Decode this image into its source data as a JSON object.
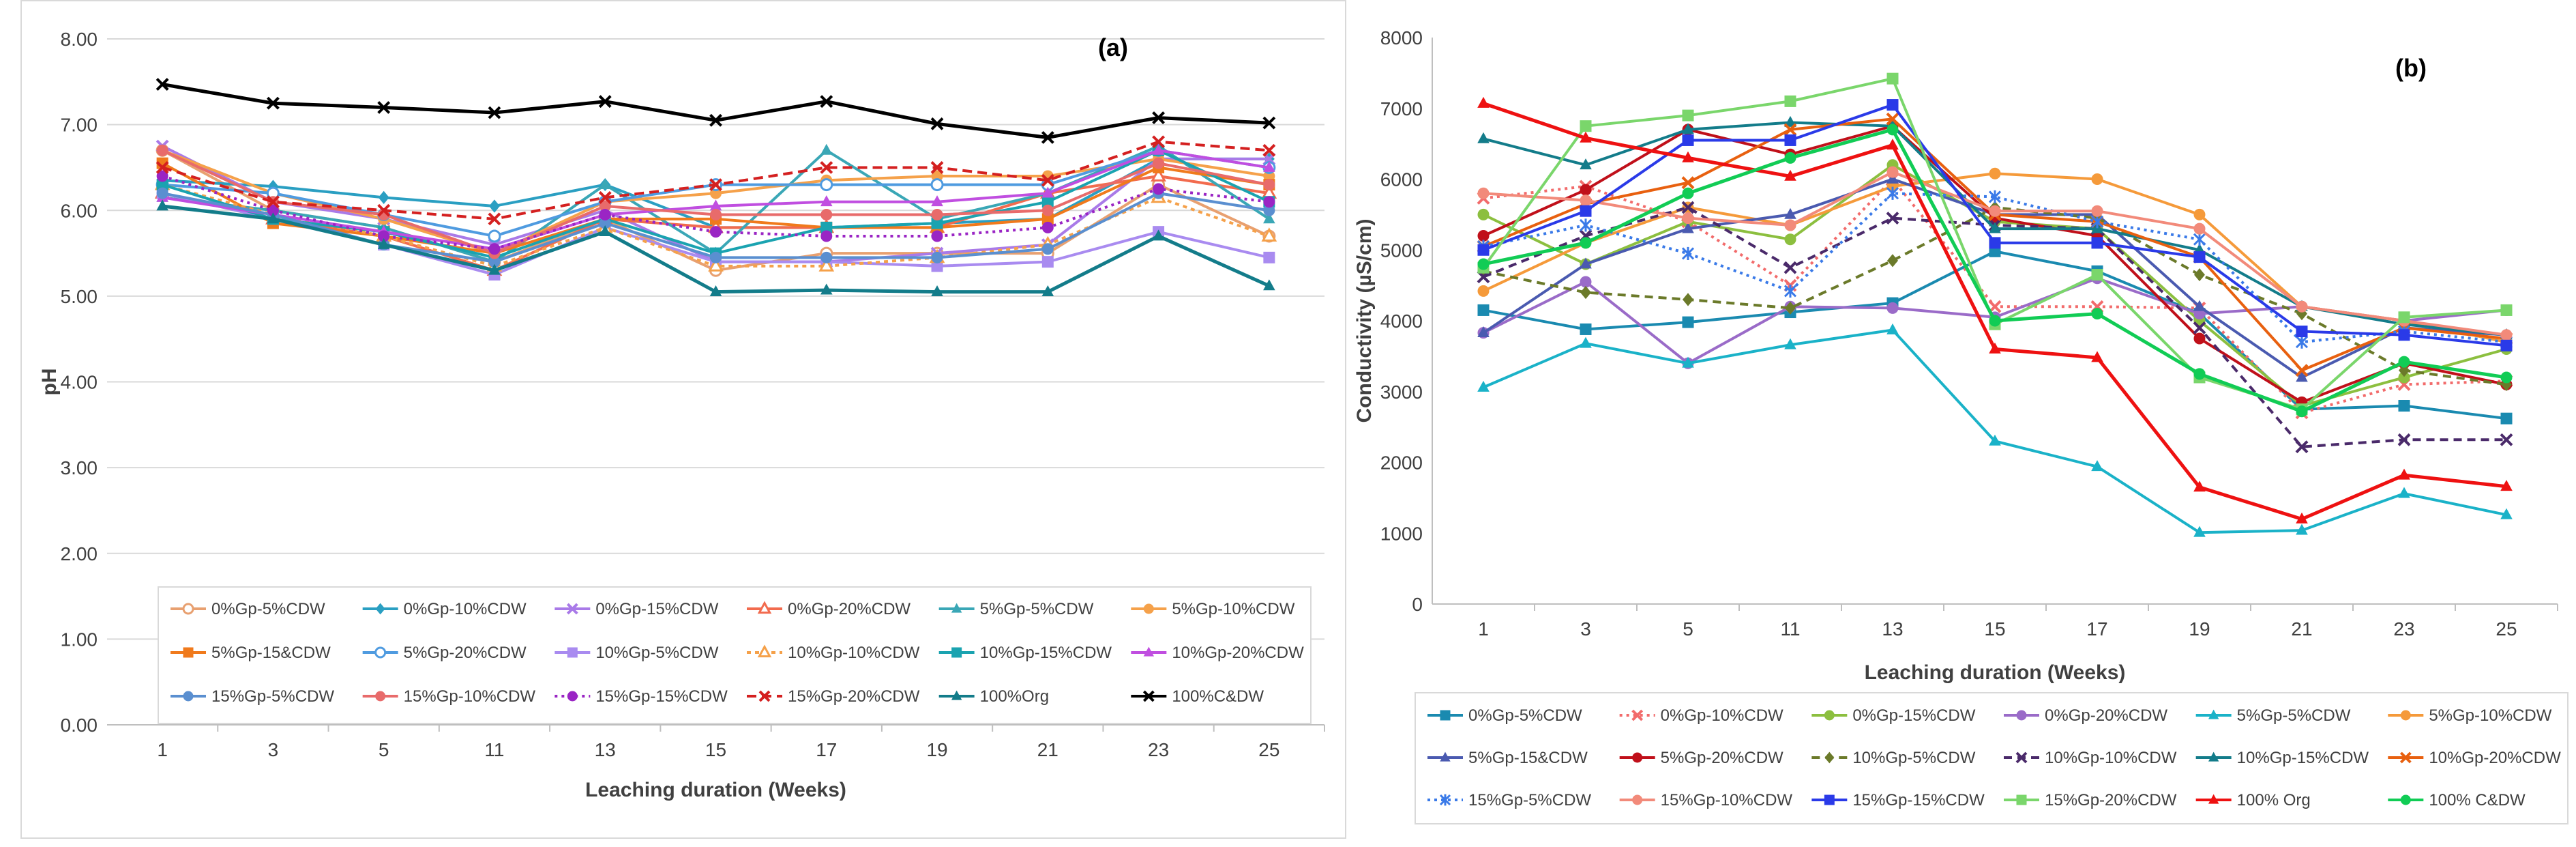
{
  "chart_data": [
    {
      "type": "line",
      "panel_label": "(a)",
      "title": "",
      "xlabel": "Leaching duration (Weeks)",
      "ylabel": "pH",
      "ylim": [
        0,
        8
      ],
      "yticks": [
        "0.00",
        "1.00",
        "2.00",
        "3.00",
        "4.00",
        "5.00",
        "6.00",
        "7.00",
        "8.00"
      ],
      "categories": [
        "1",
        "3",
        "5",
        "11",
        "13",
        "15",
        "17",
        "19",
        "21",
        "23",
        "25"
      ],
      "grid": true,
      "legend_position": "bottom",
      "series": [
        {
          "name": "0%Gp-5%CDW",
          "color": "#e8a070",
          "dash": "",
          "marker": "circle-open",
          "values": [
            6.7,
            6.0,
            5.8,
            5.4,
            5.9,
            5.3,
            5.5,
            5.5,
            5.5,
            6.3,
            5.7
          ]
        },
        {
          "name": "0%Gp-10%CDW",
          "color": "#2a9fc2",
          "dash": "",
          "marker": "diamond",
          "values": [
            6.35,
            6.28,
            6.15,
            6.05,
            6.3,
            5.8,
            5.8,
            5.85,
            5.9,
            6.6,
            6.6
          ]
        },
        {
          "name": "0%Gp-15%CDW",
          "color": "#a97ae8",
          "dash": "",
          "marker": "x",
          "values": [
            6.75,
            6.1,
            5.9,
            5.6,
            6.0,
            5.4,
            5.4,
            5.5,
            5.6,
            6.6,
            6.6
          ]
        },
        {
          "name": "0%Gp-20%CDW",
          "color": "#f26b4e",
          "dash": "",
          "marker": "triangle-open",
          "values": [
            6.2,
            5.9,
            5.7,
            5.3,
            5.9,
            5.8,
            5.8,
            5.8,
            6.2,
            6.4,
            6.2
          ]
        },
        {
          "name": "5%Gp-5%CDW",
          "color": "#3aa7b6",
          "dash": "",
          "marker": "triangle",
          "values": [
            6.15,
            6.0,
            5.8,
            5.4,
            6.3,
            5.5,
            6.7,
            5.9,
            6.2,
            6.75,
            5.9
          ]
        },
        {
          "name": "5%Gp-10%CDW",
          "color": "#f5a14a",
          "dash": "",
          "marker": "circle",
          "values": [
            6.7,
            6.2,
            5.9,
            5.5,
            6.1,
            6.2,
            6.35,
            6.4,
            6.4,
            6.6,
            6.4
          ]
        },
        {
          "name": "5%Gp-15&CDW",
          "color": "#f07a1c",
          "dash": "",
          "marker": "square",
          "values": [
            6.55,
            5.85,
            5.7,
            5.5,
            5.9,
            5.9,
            5.8,
            5.8,
            5.9,
            6.5,
            6.3
          ]
        },
        {
          "name": "5%Gp-20%CDW",
          "color": "#4f9be0",
          "dash": "",
          "marker": "circle-open",
          "values": [
            6.3,
            6.2,
            5.95,
            5.7,
            6.1,
            6.3,
            6.3,
            6.3,
            6.3,
            6.7,
            6.5
          ]
        },
        {
          "name": "10%Gp-5%CDW",
          "color": "#a98bf0",
          "dash": "",
          "marker": "square",
          "values": [
            6.2,
            5.9,
            5.6,
            5.25,
            5.8,
            5.4,
            5.4,
            5.35,
            5.4,
            5.75,
            5.45
          ]
        },
        {
          "name": "10%Gp-10%CDW",
          "color": "#f5a14a",
          "dash": "6,6",
          "marker": "triangle-open",
          "values": [
            6.3,
            5.95,
            5.7,
            5.35,
            5.8,
            5.35,
            5.35,
            5.45,
            5.6,
            6.15,
            5.7
          ]
        },
        {
          "name": "10%Gp-15%CDW",
          "color": "#1aa3b0",
          "dash": "",
          "marker": "square",
          "values": [
            6.3,
            5.9,
            5.75,
            5.45,
            5.9,
            5.5,
            5.8,
            5.85,
            6.1,
            6.7,
            6.1
          ]
        },
        {
          "name": "10%Gp-20%CDW",
          "color": "#c04ee0",
          "dash": "",
          "marker": "triangle",
          "values": [
            6.15,
            5.95,
            5.75,
            5.55,
            5.95,
            6.05,
            6.1,
            6.1,
            6.2,
            6.7,
            6.5
          ]
        },
        {
          "name": "15%Gp-5%CDW",
          "color": "#5a8fd0",
          "dash": "",
          "marker": "circle",
          "values": [
            6.2,
            5.95,
            5.6,
            5.4,
            5.85,
            5.45,
            5.45,
            5.45,
            5.55,
            6.2,
            6.0
          ]
        },
        {
          "name": "15%Gp-10%CDW",
          "color": "#e86b6b",
          "dash": "",
          "marker": "circle",
          "values": [
            6.7,
            6.1,
            5.95,
            5.5,
            6.05,
            5.95,
            5.95,
            5.95,
            6.0,
            6.55,
            6.3
          ]
        },
        {
          "name": "15%Gp-15%CDW",
          "color": "#9a25c4",
          "dash": "4,6",
          "marker": "circle",
          "values": [
            6.4,
            6.0,
            5.7,
            5.55,
            5.95,
            5.75,
            5.7,
            5.7,
            5.8,
            6.25,
            6.1
          ]
        },
        {
          "name": "15%Gp-20%CDW",
          "color": "#d42020",
          "dash": "14,8",
          "marker": "x",
          "values": [
            6.5,
            6.1,
            6.0,
            5.9,
            6.15,
            6.3,
            6.5,
            6.5,
            6.35,
            6.8,
            6.7
          ]
        },
        {
          "name": "100%Org",
          "color": "#137c8a",
          "dash": "",
          "marker": "triangle",
          "values": [
            6.05,
            5.9,
            5.6,
            5.3,
            5.75,
            5.05,
            5.07,
            5.05,
            5.05,
            5.7,
            5.12
          ]
        },
        {
          "name": "100%C&DW",
          "color": "#000000",
          "dash": "",
          "marker": "x",
          "values": [
            7.47,
            7.25,
            7.2,
            7.14,
            7.27,
            7.05,
            7.27,
            7.01,
            6.85,
            7.08,
            7.02
          ]
        }
      ]
    },
    {
      "type": "line",
      "panel_label": "(b)",
      "title": "",
      "xlabel": "Leaching duration (Weeks)",
      "ylabel": "Conductivity (µS/cm)",
      "ylim": [
        0,
        8000
      ],
      "yticks": [
        "0",
        "1000",
        "2000",
        "3000",
        "4000",
        "5000",
        "6000",
        "7000",
        "8000"
      ],
      "categories": [
        "1",
        "3",
        "5",
        "11",
        "13",
        "15",
        "17",
        "19",
        "21",
        "23",
        "25"
      ],
      "grid": false,
      "legend_position": "bottom",
      "series": [
        {
          "name": "0%Gp-5%CDW",
          "color": "#1a8ab0",
          "dash": "",
          "marker": "square",
          "values": [
            4150,
            3880,
            3980,
            4120,
            4250,
            4980,
            4700,
            4100,
            2750,
            2800,
            2620
          ]
        },
        {
          "name": "0%Gp-10%CDW",
          "color": "#f26b6b",
          "dash": "4,6",
          "marker": "x",
          "values": [
            5730,
            5900,
            5400,
            4500,
            6000,
            4200,
            4200,
            4180,
            2700,
            3100,
            3150
          ]
        },
        {
          "name": "0%Gp-15%CDW",
          "color": "#8cbf3f",
          "dash": "",
          "marker": "circle",
          "values": [
            5500,
            4800,
            5400,
            5150,
            6200,
            5400,
            5300,
            4000,
            2800,
            3200,
            3600
          ]
        },
        {
          "name": "0%Gp-20%CDW",
          "color": "#9a6bc8",
          "dash": "",
          "marker": "circle",
          "values": [
            3830,
            4550,
            3400,
            4200,
            4180,
            4050,
            4600,
            4100,
            4200,
            4000,
            4150
          ]
        },
        {
          "name": "5%Gp-5%CDW",
          "color": "#1ab2c8",
          "dash": "",
          "marker": "triangle",
          "values": [
            3060,
            3680,
            3400,
            3660,
            3870,
            2300,
            1940,
            1010,
            1040,
            1560,
            1260
          ]
        },
        {
          "name": "5%Gp-10%CDW",
          "color": "#f59a3a",
          "dash": "",
          "marker": "circle",
          "values": [
            4420,
            5100,
            5600,
            5350,
            5900,
            6080,
            6000,
            5500,
            4200,
            4000,
            3700
          ]
        },
        {
          "name": "5%Gp-15&CDW",
          "color": "#4a5ab0",
          "dash": "",
          "marker": "triangle",
          "values": [
            3830,
            4800,
            5300,
            5500,
            6000,
            5500,
            5500,
            4200,
            3200,
            3900,
            3800
          ]
        },
        {
          "name": "5%Gp-20%CDW",
          "color": "#c0101a",
          "dash": "",
          "marker": "circle",
          "values": [
            5200,
            5850,
            6700,
            6350,
            6750,
            5450,
            5200,
            3750,
            2850,
            3400,
            3100
          ]
        },
        {
          "name": "10%Gp-5%CDW",
          "color": "#6b7a2a",
          "dash": "12,8",
          "marker": "diamond",
          "values": [
            4700,
            4400,
            4300,
            4180,
            4850,
            5600,
            5450,
            4650,
            4100,
            3300,
            3100
          ]
        },
        {
          "name": "10%Gp-10%CDW",
          "color": "#4a2a6a",
          "dash": "12,8",
          "marker": "x",
          "values": [
            4620,
            5200,
            5600,
            4750,
            5450,
            5350,
            5300,
            3900,
            2220,
            2320,
            2320
          ]
        },
        {
          "name": "10%Gp-15%CDW",
          "color": "#137c8a",
          "dash": "",
          "marker": "triangle",
          "values": [
            6570,
            6200,
            6700,
            6800,
            6750,
            5300,
            5300,
            5000,
            4200,
            3950,
            3800
          ]
        },
        {
          "name": "10%Gp-20%CDW",
          "color": "#e8600f",
          "dash": "",
          "marker": "x",
          "values": [
            5050,
            5650,
            5950,
            6700,
            6850,
            5500,
            5400,
            4900,
            3300,
            3900,
            3750
          ]
        },
        {
          "name": "15%Gp-5%CDW",
          "color": "#3a7ae8",
          "dash": "4,6",
          "marker": "asterisk",
          "values": [
            5050,
            5350,
            4950,
            4420,
            5800,
            5750,
            5400,
            5150,
            3700,
            3850,
            3700
          ]
        },
        {
          "name": "15%Gp-10%CDW",
          "color": "#f28a7a",
          "dash": "",
          "marker": "circle",
          "values": [
            5800,
            5700,
            5450,
            5350,
            6100,
            5550,
            5550,
            5300,
            4200,
            4000,
            3800
          ]
        },
        {
          "name": "15%Gp-15%CDW",
          "color": "#2a3ae8",
          "dash": "",
          "marker": "square",
          "values": [
            5000,
            5550,
            6550,
            6550,
            7050,
            5100,
            5100,
            4900,
            3850,
            3800,
            3650
          ]
        },
        {
          "name": "15%Gp-20%CDW",
          "color": "#7ad66b",
          "dash": "",
          "marker": "square",
          "values": [
            4750,
            6750,
            6900,
            7100,
            7420,
            3950,
            4650,
            3200,
            2750,
            4050,
            4150
          ]
        },
        {
          "name": "100% Org",
          "color": "#ee1111",
          "dash": "",
          "marker": "triangle",
          "values": [
            7070,
            6580,
            6300,
            6040,
            6480,
            3600,
            3480,
            1650,
            1200,
            1820,
            1660
          ]
        },
        {
          "name": "100% C&DW",
          "color": "#11cc55",
          "dash": "",
          "marker": "circle",
          "values": [
            4800,
            5100,
            5800,
            6300,
            6700,
            4000,
            4100,
            3250,
            2720,
            3420,
            3200
          ]
        }
      ]
    }
  ]
}
